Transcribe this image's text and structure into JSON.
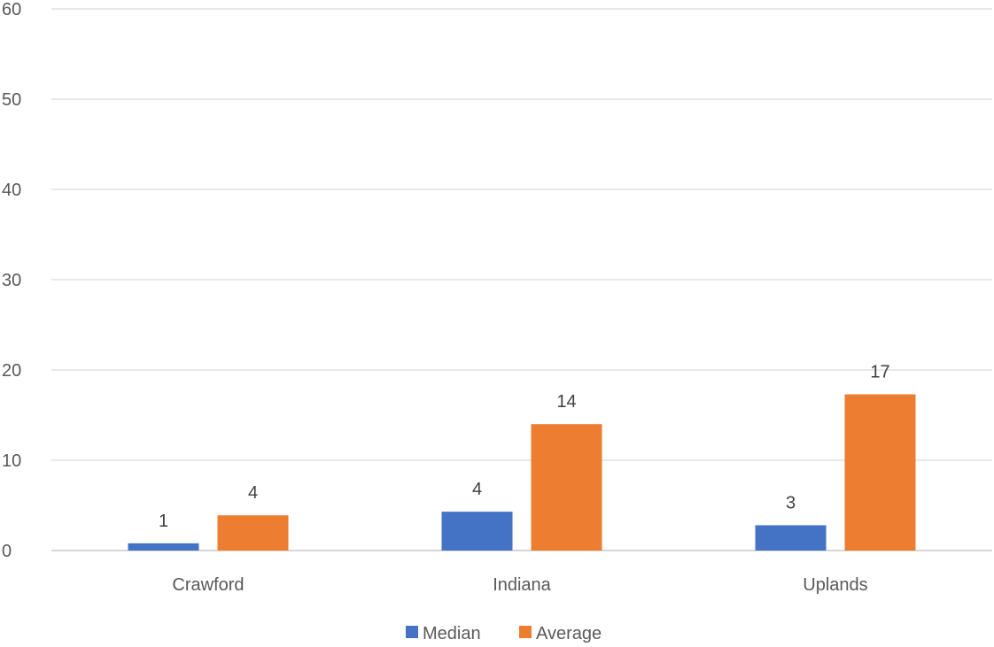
{
  "chart_data": {
    "type": "bar",
    "categories": [
      "Crawford",
      "Indiana",
      "Uplands"
    ],
    "series": [
      {
        "name": "Median",
        "values": [
          0.8,
          4.3,
          2.8
        ],
        "labels": [
          "1",
          "4",
          "3"
        ],
        "color": "#4472c4"
      },
      {
        "name": "Average",
        "values": [
          3.9,
          14.0,
          17.3
        ],
        "labels": [
          "4",
          "14",
          "17"
        ],
        "color": "#ed7d31"
      }
    ],
    "yticks": [
      "0",
      "10",
      "20",
      "30",
      "40",
      "50",
      "60"
    ],
    "ylim": [
      0,
      60
    ],
    "grid": true,
    "legend": "bottom",
    "colors": {
      "grid": "#d9d9d9",
      "axis": "#bfbfbf",
      "text": "#595959"
    }
  }
}
